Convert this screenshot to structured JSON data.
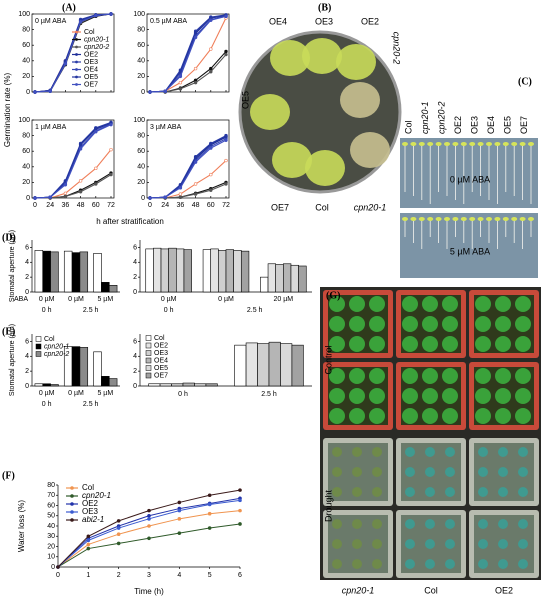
{
  "panels": {
    "A": {
      "label": "(A)",
      "ylabel": "Germination rate (%)",
      "xlabel": "h after stratification",
      "x": [
        0,
        24,
        36,
        48,
        60,
        72
      ],
      "ylim": [
        0,
        100
      ],
      "yticks": [
        0,
        20,
        40,
        60,
        80,
        100
      ],
      "series": [
        {
          "name": "Col",
          "color": "#f07f5a"
        },
        {
          "name": "cpn20-1",
          "color": "#111111"
        },
        {
          "name": "cpn20-2",
          "color": "#555555"
        },
        {
          "name": "OE2",
          "color": "#1f2f99"
        },
        {
          "name": "OE3",
          "color": "#2a3ca8"
        },
        {
          "name": "OE4",
          "color": "#3546b5"
        },
        {
          "name": "OE5",
          "color": "#2436a0"
        },
        {
          "name": "OE7",
          "color": "#4050c0"
        }
      ],
      "subplots": [
        {
          "title": "0 µM ABA",
          "values": [
            [
              0,
              2,
              40,
              90,
              98,
              100
            ],
            [
              0,
              1,
              35,
              88,
              97,
              100
            ],
            [
              0,
              1,
              36,
              89,
              98,
              100
            ],
            [
              0,
              2,
              38,
              92,
              98,
              100
            ],
            [
              0,
              2,
              40,
              93,
              99,
              100
            ],
            [
              0,
              1,
              37,
              91,
              98,
              100
            ],
            [
              0,
              2,
              39,
              92,
              99,
              100
            ],
            [
              0,
              1,
              36,
              90,
              98,
              100
            ]
          ]
        },
        {
          "title": "0.5 µM ABA",
          "values": [
            [
              0,
              1,
              12,
              30,
              55,
              95
            ],
            [
              0,
              0,
              5,
              15,
              30,
              52
            ],
            [
              0,
              0,
              4,
              12,
              26,
              48
            ],
            [
              0,
              1,
              25,
              75,
              95,
              98
            ],
            [
              0,
              1,
              28,
              78,
              96,
              99
            ],
            [
              0,
              1,
              22,
              72,
              93,
              97
            ],
            [
              0,
              1,
              26,
              76,
              95,
              98
            ],
            [
              0,
              1,
              20,
              70,
              92,
              97
            ]
          ]
        },
        {
          "title": "1 µM ABA",
          "values": [
            [
              0,
              0,
              6,
              22,
              38,
              62
            ],
            [
              0,
              0,
              2,
              10,
              20,
              32
            ],
            [
              0,
              0,
              2,
              8,
              18,
              30
            ],
            [
              0,
              1,
              20,
              68,
              88,
              96
            ],
            [
              0,
              1,
              22,
              70,
              90,
              97
            ],
            [
              0,
              1,
              18,
              65,
              86,
              95
            ],
            [
              0,
              1,
              21,
              69,
              89,
              96
            ],
            [
              0,
              1,
              17,
              63,
              85,
              94
            ]
          ]
        },
        {
          "title": "3 µM ABA",
          "values": [
            [
              0,
              0,
              5,
              18,
              30,
              48
            ],
            [
              0,
              0,
              1,
              6,
              12,
              20
            ],
            [
              0,
              0,
              1,
              5,
              10,
              18
            ],
            [
              0,
              1,
              15,
              50,
              68,
              78
            ],
            [
              0,
              1,
              17,
              53,
              70,
              80
            ],
            [
              0,
              1,
              14,
              48,
              66,
              76
            ],
            [
              0,
              1,
              16,
              52,
              69,
              79
            ],
            [
              0,
              1,
              13,
              46,
              64,
              74
            ]
          ]
        }
      ]
    },
    "B": {
      "label": "(B)",
      "top": [
        "OE4",
        "OE3",
        "OE2"
      ],
      "left": "OE5",
      "right": "cpn20-2",
      "bottom": [
        "OE7",
        "Col",
        "cpn20-1"
      ]
    },
    "C": {
      "label": "(C)",
      "columns": [
        "Col",
        "cpn20-1",
        "cpn20-2",
        "OE2",
        "OE3",
        "OE4",
        "OE5",
        "OE7"
      ],
      "rows": [
        "0 µM ABA",
        "5 µM ABA"
      ]
    },
    "D": {
      "label": "(D)",
      "ylabel": "Stomatal aperture (µm)",
      "aba": "ABA",
      "ylim": [
        0,
        7
      ],
      "yticks": [
        0,
        2,
        4,
        6
      ],
      "left": {
        "groups": [
          {
            "conc": "0 µM",
            "values": [
              5.6,
              5.5,
              5.4
            ]
          },
          {
            "conc": "0 µM",
            "values": [
              5.5,
              5.3,
              5.4
            ]
          },
          {
            "conc": "5 µM",
            "values": [
              5.2,
              1.3,
              0.9
            ]
          }
        ],
        "times": [
          "0 h",
          "2.5 h"
        ]
      },
      "right": {
        "groups": [
          {
            "conc": "0 µM",
            "values": [
              5.8,
              5.9,
              5.8,
              5.9,
              5.8,
              5.7
            ]
          },
          {
            "conc": "0 µM",
            "values": [
              5.7,
              5.8,
              5.6,
              5.7,
              5.6,
              5.5
            ]
          },
          {
            "conc": "20 µM",
            "values": [
              2.0,
              3.8,
              3.7,
              3.8,
              3.6,
              3.5
            ]
          }
        ],
        "times": [
          "0 h",
          "2.5 h"
        ]
      }
    },
    "E": {
      "label": "(E)",
      "ylabel": "Stomatal aperture (µm)",
      "ylim": [
        0,
        7
      ],
      "yticks": [
        0,
        2,
        4,
        6
      ],
      "left_series": [
        {
          "name": "Col",
          "color": "#ffffff"
        },
        {
          "name": "cpn20-1",
          "color": "#000000"
        },
        {
          "name": "cpn20-2",
          "color": "#8a8a8a"
        }
      ],
      "right_series": [
        {
          "name": "Col",
          "color": "#ffffff"
        },
        {
          "name": "OE2",
          "color": "#e4e4e4"
        },
        {
          "name": "OE3",
          "color": "#cfcfcf"
        },
        {
          "name": "OE4",
          "color": "#b5b5b5"
        },
        {
          "name": "OE5",
          "color": "#dadada"
        },
        {
          "name": "OE7",
          "color": "#a2a2a2"
        }
      ],
      "left": {
        "groups": [
          {
            "conc": "0 µM",
            "values": [
              0.3,
              0.3,
              0.2
            ]
          },
          {
            "conc": "0 µM",
            "values": [
              5.3,
              5.3,
              5.2
            ]
          },
          {
            "conc": "5 µM",
            "values": [
              4.6,
              1.3,
              1.0
            ]
          }
        ],
        "times": [
          "0 h",
          "2.5 h"
        ]
      },
      "right": {
        "groups": [
          {
            "values": [
              0.3,
              0.3,
              0.3,
              0.4,
              0.3,
              0.3
            ]
          },
          {
            "values": [
              5.5,
              5.8,
              5.7,
              5.9,
              5.7,
              5.5
            ]
          }
        ],
        "times": [
          "0 h",
          "2.5 h"
        ]
      }
    },
    "F": {
      "label": "(F)",
      "ylabel": "Water loss (%)",
      "xlabel": "Time (h)",
      "x": [
        0,
        1,
        2,
        3,
        4,
        5,
        6
      ],
      "xlim": [
        0,
        6
      ],
      "xticks": [
        0,
        1,
        2,
        3,
        4,
        5,
        6
      ],
      "ylim": [
        0,
        80
      ],
      "yticks": [
        0,
        10,
        20,
        30,
        40,
        50,
        60,
        70,
        80
      ],
      "series": [
        {
          "name": "Col",
          "color": "#f0944f",
          "values": [
            0,
            22,
            32,
            40,
            47,
            52,
            55
          ]
        },
        {
          "name": "cpn20-1",
          "color": "#2f5a2a",
          "values": [
            0,
            18,
            23,
            28,
            33,
            38,
            42
          ]
        },
        {
          "name": "OE2",
          "color": "#2233aa",
          "values": [
            0,
            28,
            40,
            50,
            57,
            62,
            67
          ]
        },
        {
          "name": "OE3",
          "color": "#3b5bd0",
          "values": [
            0,
            26,
            38,
            47,
            55,
            61,
            65
          ]
        },
        {
          "name": "abi2-1",
          "color": "#3a1a1a",
          "values": [
            0,
            30,
            45,
            55,
            63,
            70,
            75
          ]
        }
      ]
    },
    "G": {
      "label": "(G)",
      "rows": [
        "Control",
        "Drought"
      ],
      "columns": [
        "cpn20-1",
        "Col",
        "OE2"
      ]
    }
  }
}
